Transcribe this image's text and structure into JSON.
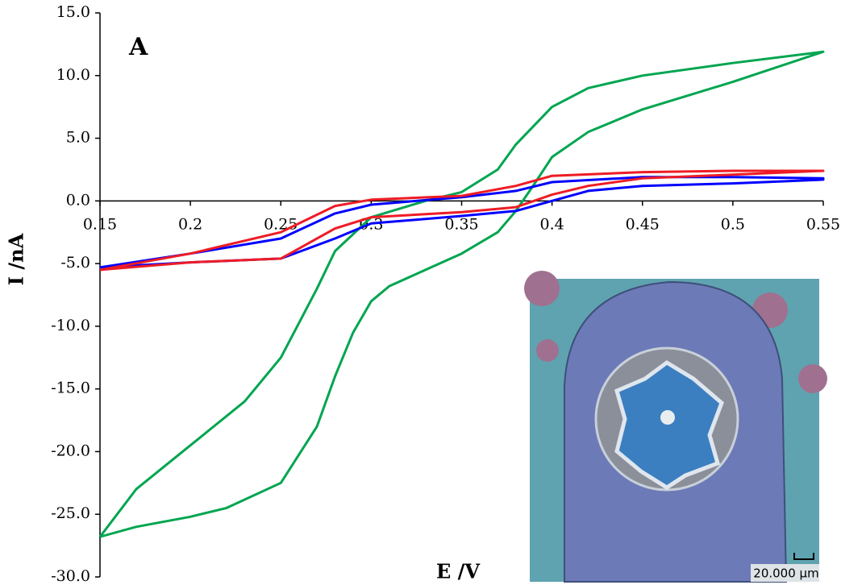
{
  "chart_data": {
    "type": "line",
    "x_label": "E /V",
    "y_label": "I /nA",
    "panel_label": "A",
    "inset_scale_label": "20.000 μm",
    "xlim": [
      0.15,
      0.55
    ],
    "xticks": [
      0.15,
      0.2,
      0.25,
      0.3,
      0.35,
      0.4,
      0.45,
      0.5,
      0.55
    ],
    "ylim": [
      -30,
      15
    ],
    "yticks": [
      {
        "value": -30,
        "label": "-30.0"
      },
      {
        "value": -25,
        "label": "-25.0"
      },
      {
        "value": -20,
        "label": "-20.0"
      },
      {
        "value": -15,
        "label": "-15.0"
      },
      {
        "value": -10,
        "label": "-10.0"
      },
      {
        "value": -5,
        "label": "-5.0"
      },
      {
        "value": 0,
        "label": "0.0"
      },
      {
        "value": 5,
        "label": "5.0"
      },
      {
        "value": 10,
        "label": "10.0"
      },
      {
        "value": 15,
        "label": "15.0"
      }
    ],
    "series": [
      {
        "color": "#00a550",
        "x": [
          0.15,
          0.17,
          0.2,
          0.23,
          0.25,
          0.27,
          0.28,
          0.3,
          0.33,
          0.35,
          0.37,
          0.38,
          0.4,
          0.42,
          0.45,
          0.5,
          0.55,
          0.5,
          0.45,
          0.42,
          0.4,
          0.39,
          0.38,
          0.37,
          0.35,
          0.33,
          0.31,
          0.3,
          0.29,
          0.28,
          0.27,
          0.25,
          0.22,
          0.2,
          0.17,
          0.15
        ],
        "values": [
          -26.8,
          -23,
          -19.5,
          -16,
          -12.5,
          -7,
          -4,
          -1.3,
          0,
          0.7,
          2.5,
          4.5,
          7.5,
          9,
          10,
          11,
          11.9,
          9.5,
          7.3,
          5.5,
          3.5,
          1.3,
          -0.8,
          -2.5,
          -4.2,
          -5.5,
          -6.8,
          -8,
          -10.5,
          -14,
          -18,
          -22.5,
          -24.5,
          -25.2,
          -26,
          -26.8
        ]
      },
      {
        "color": "#0000ff",
        "x": [
          0.15,
          0.2,
          0.25,
          0.28,
          0.3,
          0.35,
          0.38,
          0.4,
          0.45,
          0.5,
          0.55,
          0.55,
          0.5,
          0.45,
          0.42,
          0.4,
          0.38,
          0.35,
          0.3,
          0.28,
          0.25,
          0.2,
          0.15
        ],
        "values": [
          -5.3,
          -4.2,
          -3,
          -1,
          -0.3,
          0.3,
          0.8,
          1.5,
          1.9,
          1.9,
          1.8,
          1.7,
          1.4,
          1.2,
          0.8,
          0,
          -0.8,
          -1.2,
          -1.8,
          -3,
          -4.6,
          -4.9,
          -5.3
        ]
      },
      {
        "color": "#ee1c25",
        "x": [
          0.15,
          0.2,
          0.25,
          0.28,
          0.3,
          0.35,
          0.38,
          0.4,
          0.45,
          0.5,
          0.55,
          0.5,
          0.45,
          0.42,
          0.4,
          0.38,
          0.35,
          0.3,
          0.28,
          0.25,
          0.2,
          0.15
        ],
        "values": [
          -5.5,
          -4.2,
          -2.5,
          -0.4,
          0.1,
          0.4,
          1.2,
          2,
          2.3,
          2.4,
          2.4,
          2.1,
          1.8,
          1.2,
          0.5,
          -0.5,
          -0.9,
          -1.3,
          -2.2,
          -4.6,
          -4.9,
          -5.5
        ]
      }
    ]
  }
}
